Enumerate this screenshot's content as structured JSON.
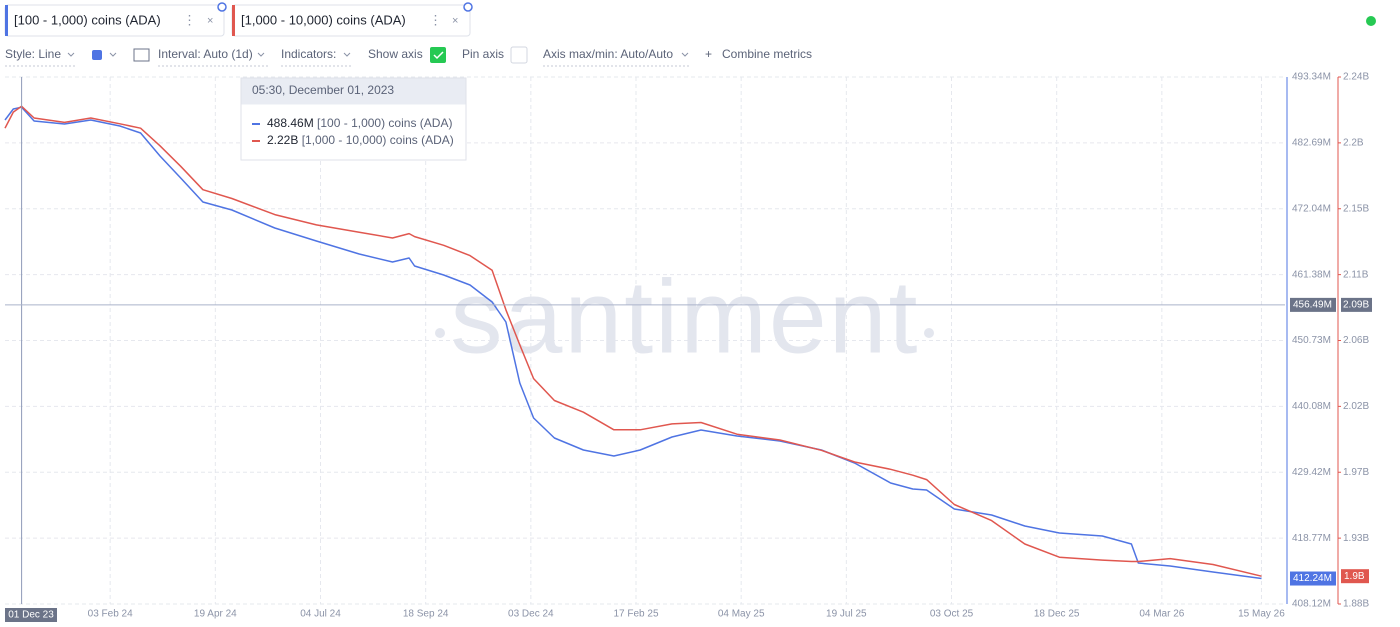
{
  "toolbar": {
    "style": "Style: Line",
    "interval": "Interval: Auto (1d)",
    "indicators": "Indicators:",
    "show_axis": "Show axis",
    "pin_axis": "Pin axis",
    "axis_minmax": "Axis max/min: Auto/Auto",
    "combine": "Combine metrics"
  },
  "watermark": "santiment",
  "tooltip": {
    "title": "05:30, December 01, 2023",
    "labels": [
      "488.46M",
      "2.22B"
    ]
  },
  "chart_data": {
    "type": "line",
    "x": [
      "2023-11-19",
      "2023-11-25",
      "2023-12-01",
      "2023-12-10",
      "2024-01-01",
      "2024-01-20",
      "2024-02-10",
      "2024-02-25",
      "2024-03-10",
      "2024-03-25",
      "2024-04-10",
      "2024-05-01",
      "2024-06-01",
      "2024-07-01",
      "2024-08-01",
      "2024-08-25",
      "2024-09-06",
      "2024-09-10",
      "2024-10-01",
      "2024-10-20",
      "2024-11-05",
      "2024-11-15",
      "2024-11-25",
      "2024-12-05",
      "2024-12-20",
      "2025-01-10",
      "2025-02-01",
      "2025-02-20",
      "2025-03-15",
      "2025-04-05",
      "2025-05-01",
      "2025-06-01",
      "2025-07-01",
      "2025-07-25",
      "2025-08-20",
      "2025-09-05",
      "2025-09-15",
      "2025-10-05",
      "2025-11-01",
      "2025-11-25",
      "2025-12-20",
      "2026-01-20",
      "2026-02-10",
      "2026-02-15",
      "2026-03-10",
      "2026-04-10",
      "2026-05-15"
    ],
    "series": [
      {
        "name": "[100 - 1,000) coins (ADA)",
        "color": "#4f74e3",
        "last_label": "412.24M",
        "values": [
          486.39,
          488.17,
          488.46,
          486.23,
          485.74,
          486.39,
          485.42,
          484.28,
          480.57,
          477.01,
          473.13,
          471.83,
          468.92,
          466.82,
          464.72,
          463.43,
          464.07,
          462.78,
          461.32,
          459.71,
          456.96,
          453.72,
          443.86,
          438.2,
          434.97,
          433.03,
          432.06,
          433.03,
          435.13,
          436.26,
          435.29,
          434.48,
          433.03,
          430.92,
          427.69,
          426.72,
          426.56,
          423.49,
          422.52,
          420.74,
          419.6,
          419.12,
          417.83,
          414.75,
          414.27,
          413.3,
          412.24
        ]
      },
      {
        "name": "[1,000 - 10,000) coins (ADA)",
        "color": "#e0574f",
        "axis": "y2",
        "last_label": "1.9B",
        "values": [
          2.205,
          2.216,
          2.22,
          2.212,
          2.209,
          2.212,
          2.208,
          2.205,
          2.193,
          2.179,
          2.163,
          2.157,
          2.146,
          2.139,
          2.134,
          2.13,
          2.133,
          2.131,
          2.125,
          2.118,
          2.108,
          2.081,
          2.057,
          2.034,
          2.019,
          2.011,
          1.999,
          1.999,
          2.003,
          2.004,
          1.996,
          1.992,
          1.985,
          1.977,
          1.972,
          1.968,
          1.965,
          1.948,
          1.937,
          1.921,
          1.912,
          1.91,
          1.909,
          1.909,
          1.911,
          1.907,
          1.899
        ]
      }
    ],
    "xlim": [
      "2023-11-19",
      "2026-06-01"
    ],
    "xticks": [
      {
        "value": "2024-02-03",
        "label": "03 Feb 24"
      },
      {
        "value": "2024-04-19",
        "label": "19 Apr 24"
      },
      {
        "value": "2024-07-04",
        "label": "04 Jul 24"
      },
      {
        "value": "2024-09-18",
        "label": "18 Sep 24"
      },
      {
        "value": "2024-12-03",
        "label": "03 Dec 24"
      },
      {
        "value": "2025-02-17",
        "label": "17 Feb 25"
      },
      {
        "value": "2025-05-04",
        "label": "04 May 25"
      },
      {
        "value": "2025-07-19",
        "label": "19 Jul 25"
      },
      {
        "value": "2025-10-03",
        "label": "03 Oct 25"
      },
      {
        "value": "2025-12-18",
        "label": "18 Dec 25"
      },
      {
        "value": "2026-03-04",
        "label": "04 Mar 26"
      },
      {
        "value": "2026-05-15",
        "label": "15 May 26"
      }
    ],
    "ylim": [
      408.12,
      493.34
    ],
    "yticks": [
      {
        "value": 408.12,
        "label": "408.12M"
      },
      {
        "value": 418.77,
        "label": "418.77M"
      },
      {
        "value": 429.42,
        "label": "429.42M"
      },
      {
        "value": 440.08,
        "label": "440.08M"
      },
      {
        "value": 450.73,
        "label": "450.73M"
      },
      {
        "value": 461.38,
        "label": "461.38M"
      },
      {
        "value": 472.04,
        "label": "472.04M"
      },
      {
        "value": 482.69,
        "label": "482.69M"
      },
      {
        "value": 493.34,
        "label": "493.34M"
      }
    ],
    "y2lim": [
      1.88,
      2.24
    ],
    "y2ticks": [
      {
        "value": 1.88,
        "label": "1.88B"
      },
      {
        "value": 1.925,
        "label": "1.93B"
      },
      {
        "value": 1.97,
        "label": "1.97B"
      },
      {
        "value": 2.015,
        "label": "2.02B"
      },
      {
        "value": 2.06,
        "label": "2.06B"
      },
      {
        "value": 2.105,
        "label": "2.11B"
      },
      {
        "value": 2.15,
        "label": "2.15B"
      },
      {
        "value": 2.195,
        "label": "2.2B"
      },
      {
        "value": 2.24,
        "label": "2.24B"
      }
    ],
    "grid": true,
    "crosshair": {
      "x": "2023-12-01",
      "x_label": "01 Dec 23",
      "y": 456.49,
      "y_label": "456.49M",
      "y2_label": "2.09B"
    }
  }
}
